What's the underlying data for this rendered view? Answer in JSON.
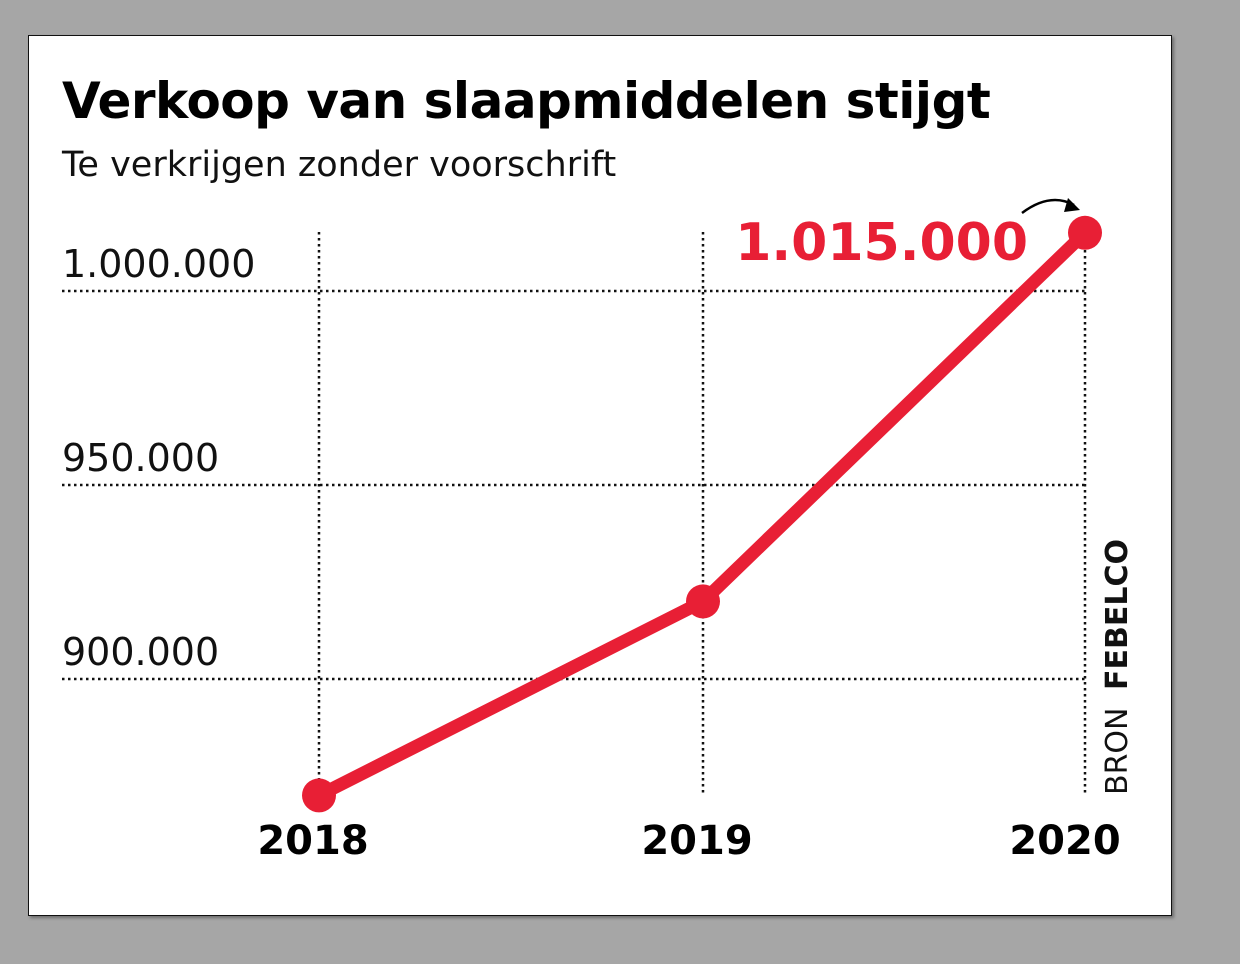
{
  "chart_data": {
    "type": "line",
    "title": "Verkoop van slaapmiddelen stijgt",
    "subtitle": "Te verkrijgen zonder voorschrift",
    "categories": [
      "2018",
      "2019",
      "2020"
    ],
    "values": [
      870000,
      920000,
      1015000
    ],
    "y_ticks": [
      900000,
      950000,
      1000000
    ],
    "y_tick_labels": [
      "900.000",
      "950.000",
      "1.000.000"
    ],
    "ylim": [
      862000,
      1020000
    ],
    "grid": "dotted",
    "annotation": "1.015.000",
    "source_prefix": "BRON",
    "source_name": "FEBELCO",
    "line_color": "#e81f35"
  }
}
